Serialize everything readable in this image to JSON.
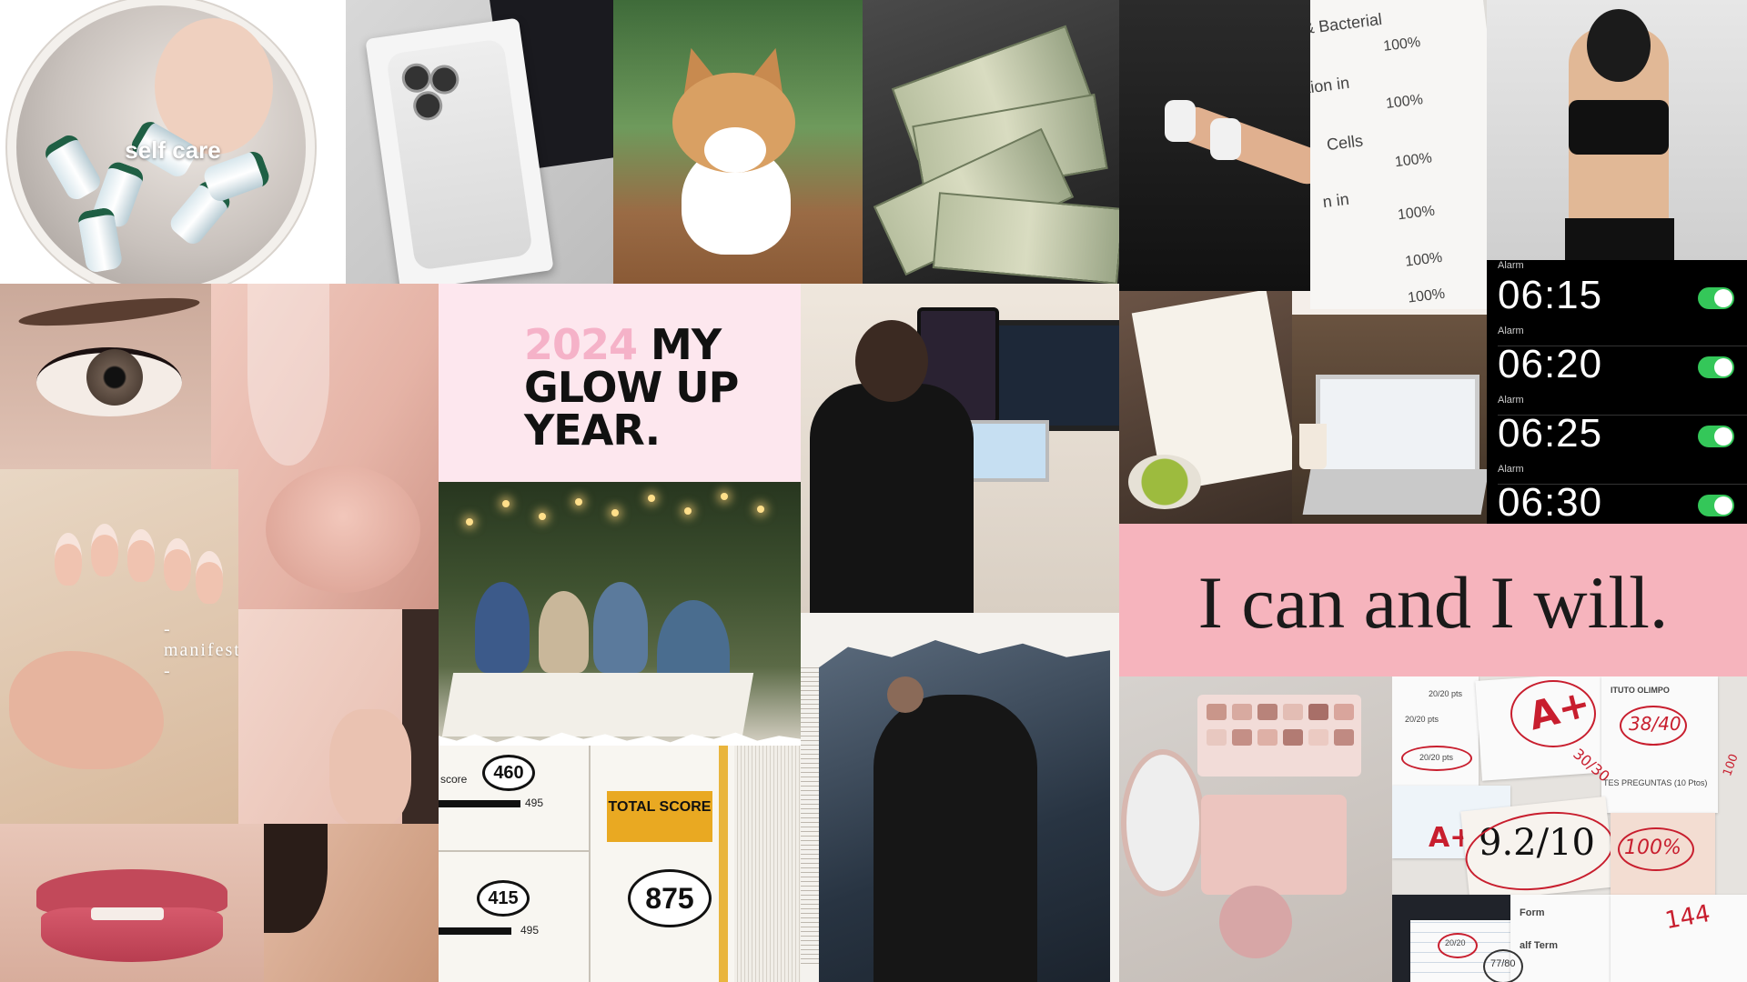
{
  "board": {
    "selfcare_caption": "self care",
    "headline": {
      "year": "2024",
      "rest_line1": " MY",
      "line2": "GLOW UP",
      "line3": "YEAR."
    },
    "manifest_caption": "- manifest -",
    "affirmation": "I can and I will."
  },
  "percent_sheet": {
    "rows": [
      {
        "label": "& Bacterial",
        "value": "100%"
      },
      {
        "label": "tion in",
        "value": "100%"
      },
      {
        "label": "Cells",
        "value": "100%"
      },
      {
        "label": "n in",
        "value": "100%"
      },
      {
        "label": "",
        "value": "100%"
      },
      {
        "label": "",
        "value": "100%"
      }
    ]
  },
  "alarms": {
    "top_label": "Alarm",
    "items": [
      {
        "time": "06:15",
        "label": "Alarm",
        "on": true
      },
      {
        "time": "06:20",
        "label": "Alarm",
        "on": true
      },
      {
        "time": "06:25",
        "label": "Alarm",
        "on": true
      },
      {
        "time": "06:30",
        "label": "",
        "on": true
      }
    ],
    "toggle_color": "#34c759"
  },
  "score_card": {
    "score_label": "score",
    "score1": "460",
    "max1": "495",
    "score2": "415",
    "max2": "495",
    "total_label": "TOTAL SCORE",
    "total": "875"
  },
  "grades": {
    "a_plus_1": "A+",
    "a_plus_2": "A+",
    "nine_two": "9.2/10",
    "hundred": "100%",
    "pts_1": "20/20 pts",
    "pts_2": "20/20 pts",
    "pts_3": "20/20 pts",
    "circled_1": "38/40",
    "circled_2": "30/30",
    "circled_3": "20/20",
    "circled_4": "77/80",
    "instituto": "ITUTO OLIMPO",
    "preguntas": "TES PREGUNTAS (10 Ptos)",
    "form": "Form",
    "half_term": "alf Term",
    "scrawl": "144",
    "side_note": "100"
  },
  "colors": {
    "glow_bg": "#fde7ee",
    "glow_year": "#f5b2c8",
    "affirm_bg": "#f6b4bd",
    "score_badge": "#e9a922",
    "grade_red": "#c81e2e"
  }
}
